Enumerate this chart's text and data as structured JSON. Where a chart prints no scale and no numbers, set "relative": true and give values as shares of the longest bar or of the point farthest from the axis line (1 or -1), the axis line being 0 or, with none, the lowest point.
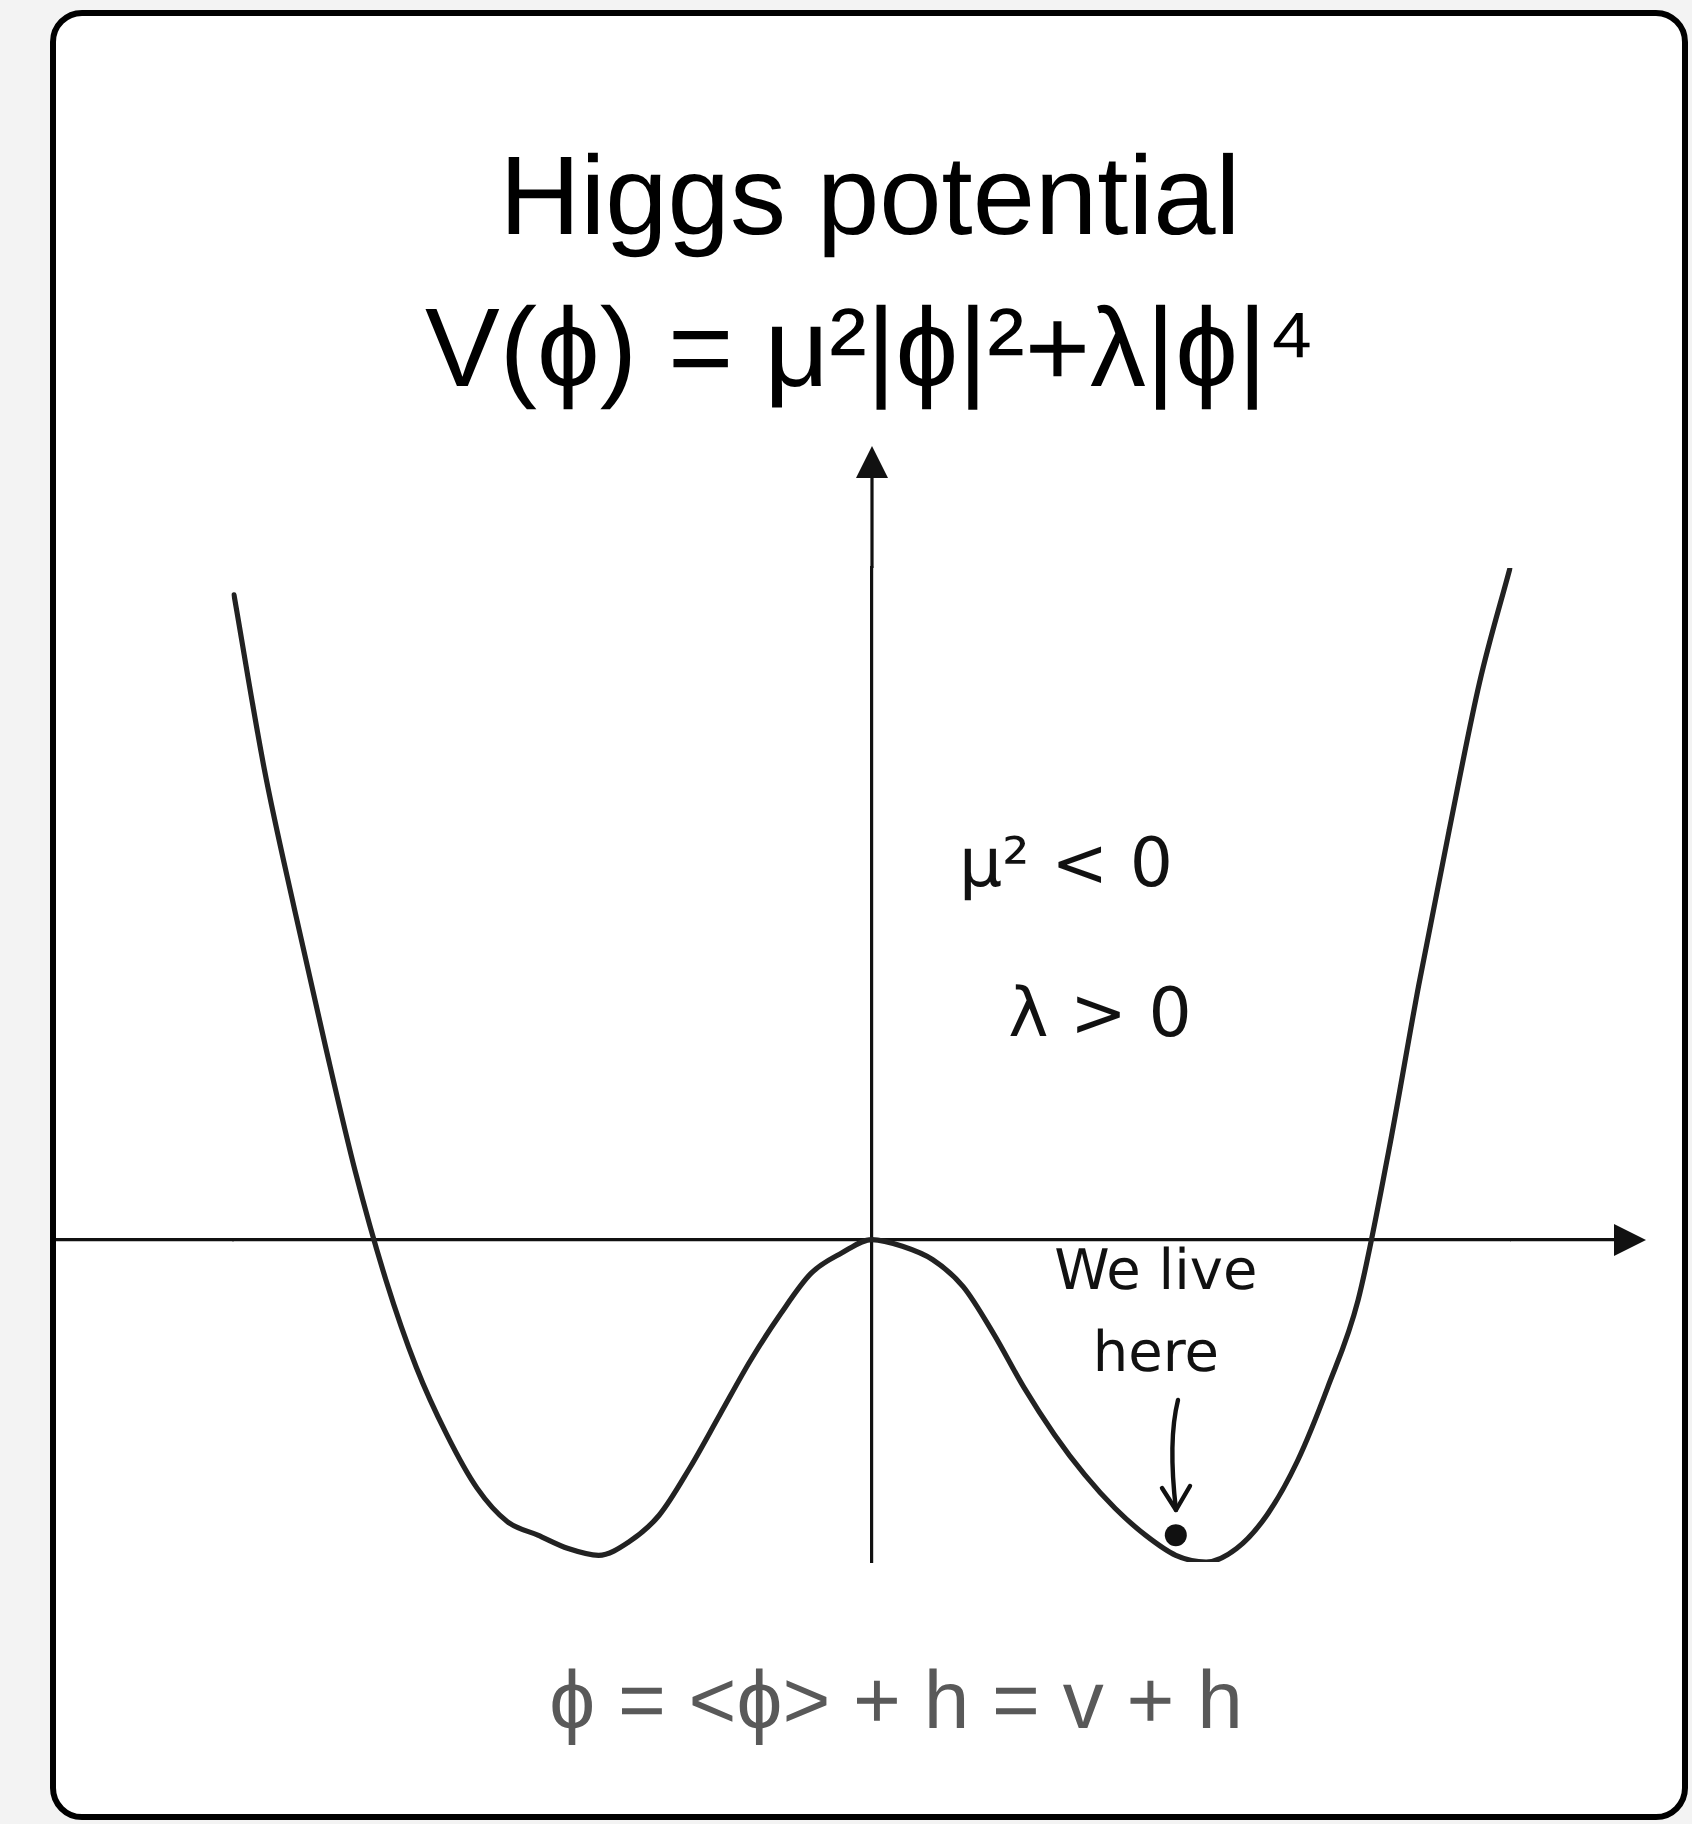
{
  "chart_data": {
    "type": "line",
    "title": "Higgs potential",
    "subtitle": "V(ϕ) = μ²|ϕ|²+λ|ϕ|⁴",
    "relative": true,
    "categories": [
      null,
      null,
      null,
      null,
      null,
      null,
      null,
      null,
      null,
      null,
      null,
      null,
      null,
      null,
      null,
      null,
      null,
      null,
      null,
      null,
      null,
      null,
      null,
      null,
      null,
      null,
      null,
      null,
      null,
      null,
      null,
      null,
      null,
      null,
      null,
      null,
      null,
      null,
      null,
      null,
      null,
      null,
      null
    ],
    "series": [
      {
        "type": "line",
        "color": "#222222",
        "marker": "none",
        "values": [
          0.96,
          0.7,
          0.49,
          0.29,
          0.1,
          -0.06,
          -0.19,
          -0.29,
          -0.37,
          -0.42,
          -0.44,
          -0.46,
          -0.47,
          -0.45,
          -0.41,
          -0.34,
          -0.26,
          -0.18,
          -0.11,
          -0.05,
          -0.02,
          0,
          -0.01,
          -0.03,
          -0.07,
          -0.14,
          -0.22,
          -0.29,
          -0.35,
          -0.4,
          -0.44,
          -0.47,
          -0.48,
          -0.46,
          -0.41,
          -0.33,
          -0.22,
          -0.09,
          0.13,
          0.38,
          0.61,
          0.83,
          1
        ]
      },
      {
        "type": "line",
        "color": "#111111",
        "marker": "circle",
        "values": [
          null,
          null,
          null,
          null,
          null,
          null,
          null,
          null,
          null,
          null,
          null,
          null,
          null,
          null,
          null,
          null,
          null,
          null,
          null,
          null,
          null,
          null,
          null,
          null,
          null,
          null,
          null,
          null,
          null,
          null,
          null,
          -0.44,
          null,
          null,
          null,
          null,
          null,
          null,
          null,
          null,
          null,
          null,
          null
        ]
      }
    ],
    "annotations": [
      "μ² < 0",
      "λ > 0",
      "We live here",
      "ϕ = <ϕ> + h = v + h"
    ]
  }
}
